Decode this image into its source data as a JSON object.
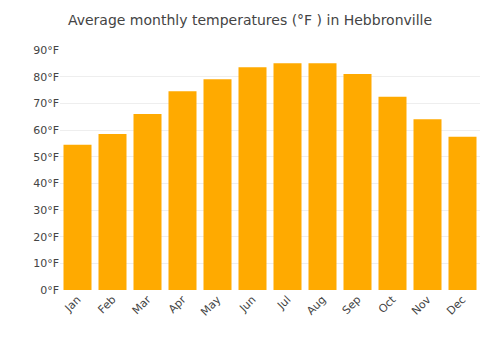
{
  "chart_data": {
    "type": "bar",
    "title": "Average monthly temperatures (°F ) in Hebbronville",
    "categories": [
      "Jan",
      "Feb",
      "Mar",
      "Apr",
      "May",
      "Jun",
      "Jul",
      "Aug",
      "Sep",
      "Oct",
      "Nov",
      "Dec"
    ],
    "values": [
      54.5,
      58.5,
      66,
      74.5,
      79,
      83.5,
      85,
      85,
      81,
      72.5,
      64,
      57.5
    ],
    "color": "#FFAA00",
    "ylim": [
      0,
      90
    ],
    "yticks": [
      {
        "value": 0,
        "label": "0°F"
      },
      {
        "value": 10,
        "label": "10°F"
      },
      {
        "value": 20,
        "label": "20°F"
      },
      {
        "value": 30,
        "label": "30°F"
      },
      {
        "value": 40,
        "label": "40°F"
      },
      {
        "value": 50,
        "label": "50°F"
      },
      {
        "value": 60,
        "label": "60°F"
      },
      {
        "value": 70,
        "label": "70°F"
      },
      {
        "value": 80,
        "label": "80°F"
      },
      {
        "value": 90,
        "label": "90°F"
      }
    ],
    "grid": true
  }
}
